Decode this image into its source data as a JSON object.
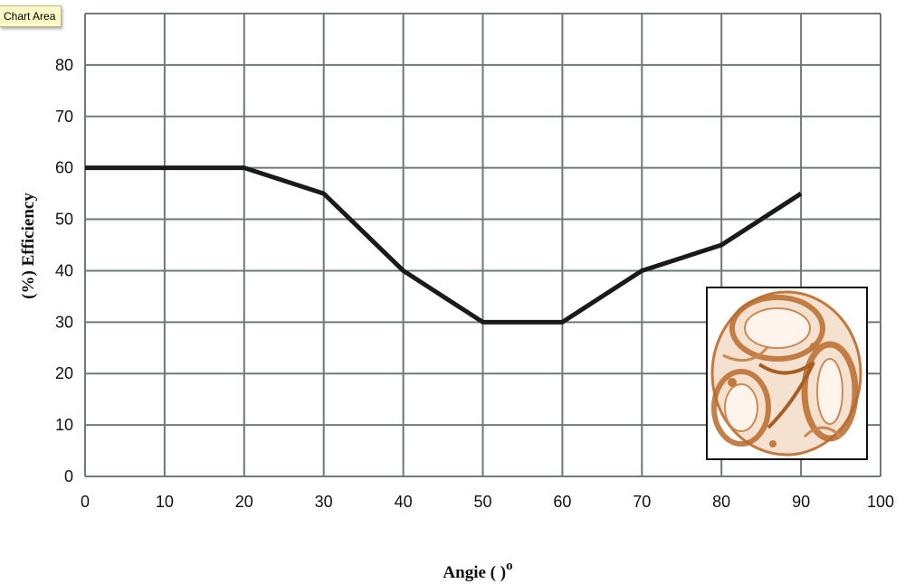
{
  "tooltip": {
    "text": "Chart Area"
  },
  "chart_data": {
    "type": "line",
    "title": "",
    "xlabel": "Angie ( )",
    "xlabel_superscript": "o",
    "ylabel": "(%)  Efficiency",
    "xlim": [
      0,
      100
    ],
    "ylim": [
      0,
      90
    ],
    "x_ticks": [
      "0",
      "10",
      "20",
      "30",
      "40",
      "50",
      "60",
      "70",
      "80",
      "90",
      "100"
    ],
    "y_ticks": [
      "0",
      "10",
      "20",
      "30",
      "40",
      "50",
      "60",
      "70",
      "80"
    ],
    "grid": true,
    "series": [
      {
        "x": [
          0,
          10,
          20,
          30,
          40,
          50,
          60,
          70,
          80,
          90
        ],
        "y": [
          60,
          60,
          60,
          55,
          40,
          30,
          30,
          40,
          45,
          55
        ],
        "color": "#1a1a1a"
      }
    ],
    "inset_image": "rotor-cross-section-photo"
  },
  "colors": {
    "grid": "#6f7a78",
    "line": "#1a1a1a",
    "inset_tint": "#c27a3c"
  }
}
